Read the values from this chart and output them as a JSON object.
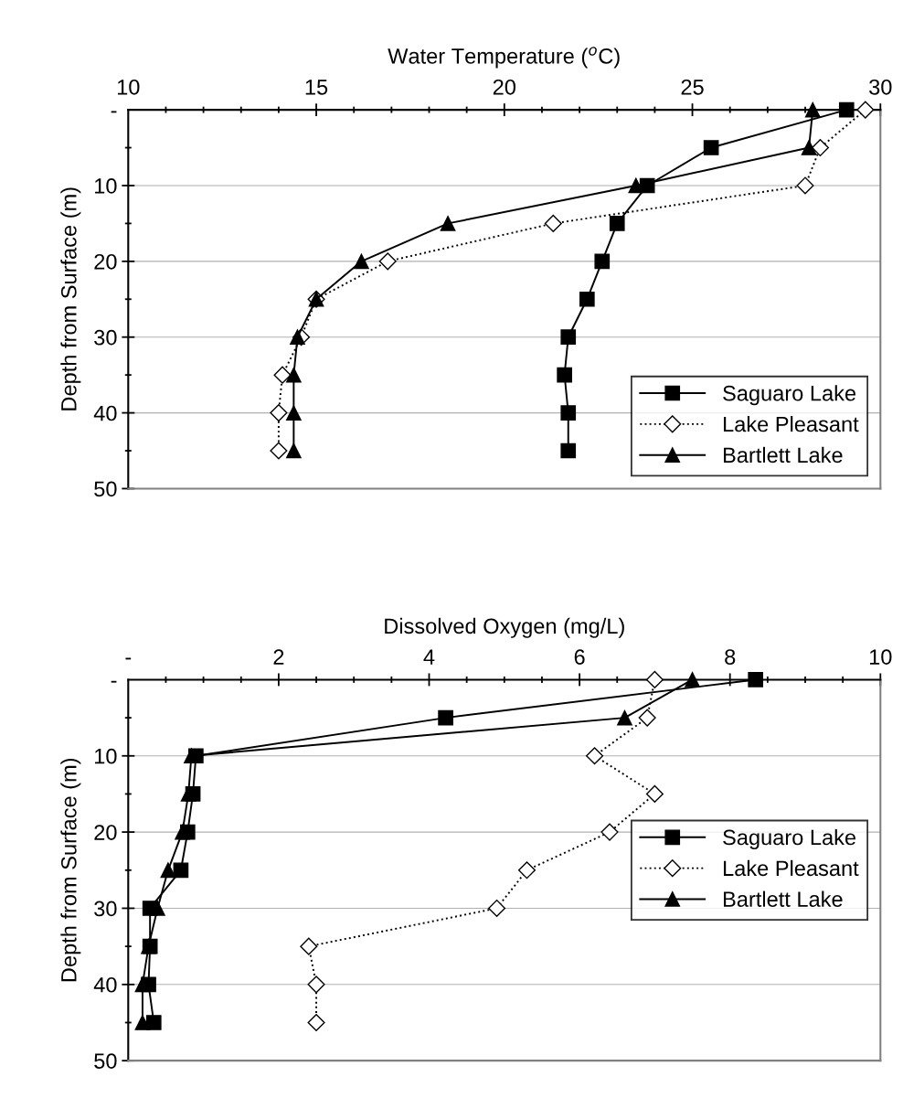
{
  "chart_data": [
    {
      "type": "line",
      "xlabel": "Water Temperature ($^{o}$C)",
      "ylabel": "Depth from Surface (m)",
      "xlim": [
        10,
        30
      ],
      "xticks": [
        10,
        {
          "value": 11,
          "label": null
        },
        {
          "value": 12,
          "label": null
        },
        {
          "value": 13,
          "label": null
        },
        {
          "value": 14,
          "label": null
        },
        15,
        {
          "value": 16,
          "label": null
        },
        {
          "value": 17,
          "label": null
        },
        {
          "value": 18,
          "label": null
        },
        {
          "value": 19,
          "label": null
        },
        20,
        {
          "value": 21,
          "label": null
        },
        {
          "value": 22,
          "label": null
        },
        {
          "value": 23,
          "label": null
        },
        {
          "value": 24,
          "label": null
        },
        25,
        {
          "value": 26,
          "label": null
        },
        {
          "value": 27,
          "label": null
        },
        {
          "value": 28,
          "label": null
        },
        {
          "value": 29,
          "label": null
        },
        30
      ],
      "ylim": [
        50,
        0
      ],
      "yticks": [
        {
          "value": 0,
          "label": "-"
        },
        {
          "value": 5,
          "label": null
        },
        10,
        {
          "value": 15,
          "label": null
        },
        20,
        {
          "value": 25,
          "label": null
        },
        30,
        {
          "value": 35,
          "label": null
        },
        40,
        {
          "value": 45,
          "label": null
        },
        50
      ],
      "grid": "y",
      "legend": "bottom right",
      "series": [
        {
          "name": "Saguaro Lake",
          "color": "#000000",
          "marker": "square",
          "line_style": "solid",
          "x": [
            29.1,
            25.5,
            23.8,
            23.0,
            22.6,
            22.2,
            21.7,
            21.6,
            21.7,
            21.7
          ],
          "values": [
            0,
            5,
            10,
            15,
            20,
            25,
            30,
            35,
            40,
            45
          ]
        },
        {
          "name": "Lake Pleasant",
          "color": "#000000",
          "marker": "diamond",
          "line_style": "dotted",
          "x": [
            29.6,
            28.4,
            28.0,
            21.3,
            16.9,
            15.0,
            14.6,
            14.1,
            14.0,
            14.0
          ],
          "values": [
            0,
            5,
            10,
            15,
            20,
            25,
            30,
            35,
            40,
            45
          ]
        },
        {
          "name": "Bartlett Lake",
          "color": "#000000",
          "marker": "triangle",
          "line_style": "solid",
          "x": [
            28.2,
            28.1,
            23.5,
            18.5,
            16.2,
            15.0,
            14.5,
            14.4,
            14.4,
            14.4
          ],
          "values": [
            0,
            5,
            10,
            15,
            20,
            25,
            30,
            35,
            40,
            45
          ]
        }
      ]
    },
    {
      "type": "line",
      "xlabel": "Dissolved Oxygen (mg/L)",
      "ylabel": "Depth from Surface (m)",
      "xlim": [
        0,
        10
      ],
      "xticks": [
        {
          "value": 0,
          "label": "-"
        },
        {
          "value": 0.5,
          "label": null
        },
        {
          "value": 1,
          "label": null
        },
        {
          "value": 1.5,
          "label": null
        },
        2,
        {
          "value": 2.5,
          "label": null
        },
        {
          "value": 3,
          "label": null
        },
        {
          "value": 3.5,
          "label": null
        },
        4,
        {
          "value": 4.5,
          "label": null
        },
        {
          "value": 5,
          "label": null
        },
        {
          "value": 5.5,
          "label": null
        },
        6,
        {
          "value": 6.5,
          "label": null
        },
        {
          "value": 7,
          "label": null
        },
        {
          "value": 7.5,
          "label": null
        },
        8,
        {
          "value": 8.5,
          "label": null
        },
        {
          "value": 9,
          "label": null
        },
        {
          "value": 9.5,
          "label": null
        },
        10
      ],
      "ylim": [
        50,
        0
      ],
      "yticks": [
        {
          "value": 0,
          "label": "-"
        },
        {
          "value": 5,
          "label": null
        },
        10,
        {
          "value": 15,
          "label": null
        },
        20,
        {
          "value": 25,
          "label": null
        },
        30,
        {
          "value": 35,
          "label": null
        },
        40,
        {
          "value": 45,
          "label": null
        },
        50
      ],
      "grid": "y",
      "legend": "right",
      "series": [
        {
          "name": "Saguaro Lake",
          "color": "#000000",
          "marker": "square",
          "line_style": "solid",
          "x": [
            8.34,
            4.22,
            0.9,
            0.86,
            0.79,
            0.7,
            0.29,
            0.29,
            0.27,
            0.34
          ],
          "values": [
            0,
            5,
            10,
            15,
            20,
            25,
            30,
            35,
            40,
            45
          ]
        },
        {
          "name": "Lake Pleasant",
          "color": "#000000",
          "marker": "diamond",
          "line_style": "dotted",
          "x": [
            7.0,
            6.9,
            6.2,
            7.0,
            6.4,
            5.3,
            4.9,
            2.4,
            2.5,
            2.5
          ],
          "values": [
            0,
            5,
            10,
            15,
            20,
            25,
            30,
            35,
            40,
            45
          ]
        },
        {
          "name": "Bartlett Lake",
          "color": "#000000",
          "marker": "triangle",
          "line_style": "solid",
          "x": [
            7.5,
            6.6,
            0.84,
            0.8,
            0.72,
            0.53,
            0.39,
            0.27,
            0.19,
            0.19
          ],
          "values": [
            0,
            5,
            10,
            15,
            20,
            25,
            30,
            35,
            40,
            45
          ]
        }
      ]
    }
  ]
}
